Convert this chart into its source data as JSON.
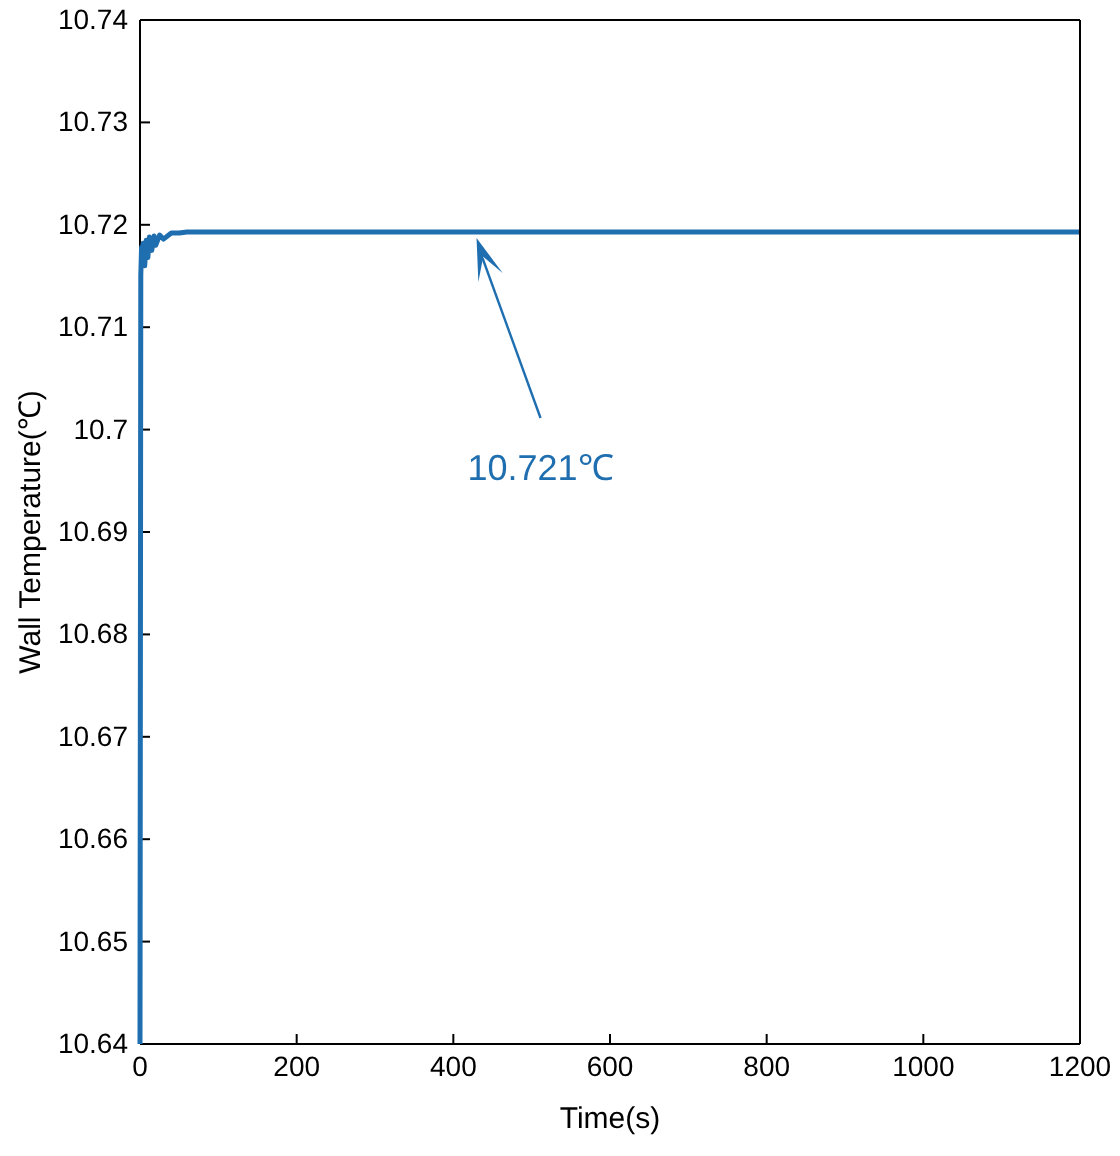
{
  "chart_data": {
    "type": "line",
    "xlabel": "Time(s)",
    "ylabel": "Wall Temperature(℃)",
    "xlim": [
      0,
      1200
    ],
    "xticks": [
      0,
      200,
      400,
      600,
      800,
      1000,
      1200
    ],
    "ylim": [
      10.64,
      10.74
    ],
    "yticks": [
      10.64,
      10.65,
      10.66,
      10.67,
      10.68,
      10.69,
      10.7,
      10.71,
      10.72,
      10.73,
      10.74
    ],
    "grid": false,
    "marker": "none",
    "line_style": "solid",
    "series": [
      {
        "color": "#1f6fb0",
        "x": [
          0,
          1,
          2,
          3,
          4,
          6,
          8,
          10,
          12,
          15,
          18,
          20,
          25,
          30,
          40,
          50,
          60,
          1200
        ],
        "values": [
          10.64,
          10.715,
          10.7178,
          10.7165,
          10.7182,
          10.716,
          10.7185,
          10.7168,
          10.7188,
          10.7175,
          10.7189,
          10.718,
          10.719,
          10.7186,
          10.7192,
          10.7192,
          10.7193,
          10.7193
        ]
      }
    ],
    "annotations": [
      "10.721℃"
    ]
  }
}
